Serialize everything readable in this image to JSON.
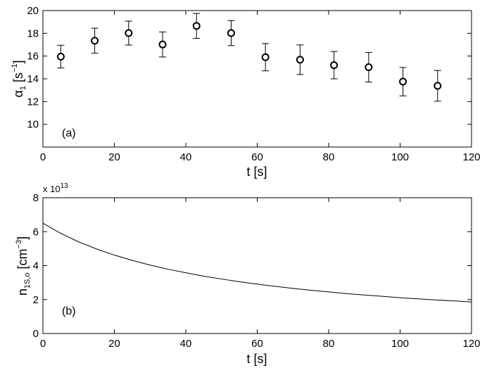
{
  "chart_data": [
    {
      "type": "scatter",
      "panel_label": "(a)",
      "xlabel": "t [s]",
      "ylabel_main": "α",
      "ylabel_sub": "1",
      "ylabel_pre": " [s",
      "ylabel_sup": "−1",
      "ylabel_post": "]",
      "xlim": [
        0,
        120
      ],
      "ylim": [
        8,
        20
      ],
      "xticks": [
        0,
        20,
        40,
        60,
        80,
        100,
        120
      ],
      "yticks": [
        10,
        12,
        14,
        16,
        18,
        20
      ],
      "grid": false,
      "marker": "open-circle",
      "series": [
        {
          "x": [
            5,
            14.5,
            24,
            33.5,
            43,
            52.7,
            62.3,
            72,
            81.5,
            91.2,
            100.8,
            110.5
          ],
          "y": [
            15.95,
            17.35,
            18.02,
            17.02,
            18.65,
            18.02,
            15.9,
            15.68,
            15.2,
            15.02,
            13.75,
            13.38
          ],
          "err": [
            1.0,
            1.1,
            1.05,
            1.1,
            1.1,
            1.1,
            1.2,
            1.3,
            1.2,
            1.3,
            1.25,
            1.35
          ]
        }
      ]
    },
    {
      "type": "line",
      "panel_label": "(b)",
      "xlabel": "t [s]",
      "ylabel_main": "n",
      "ylabel_sub": "1S,o",
      "ylabel_pre": " [cm",
      "ylabel_sup": "−3",
      "ylabel_post": "]",
      "exponent_base": "x 10",
      "exponent_power": "13",
      "xlim": [
        0,
        120
      ],
      "ylim": [
        0,
        8
      ],
      "xticks": [
        0,
        20,
        40,
        60,
        80,
        100,
        120
      ],
      "yticks": [
        0,
        2,
        4,
        6,
        8
      ],
      "grid": false,
      "series": [
        {
          "x": [
            0,
            5,
            10,
            15,
            20,
            25,
            30,
            35,
            40,
            45,
            50,
            55,
            60,
            65,
            70,
            75,
            80,
            85,
            90,
            95,
            100,
            105,
            110,
            115,
            120
          ],
          "y": [
            6.5,
            5.9,
            5.4,
            4.98,
            4.62,
            4.31,
            4.03,
            3.79,
            3.58,
            3.38,
            3.21,
            3.05,
            2.91,
            2.78,
            2.66,
            2.55,
            2.45,
            2.35,
            2.27,
            2.19,
            2.11,
            2.04,
            1.98,
            1.92,
            1.86
          ]
        }
      ]
    }
  ]
}
